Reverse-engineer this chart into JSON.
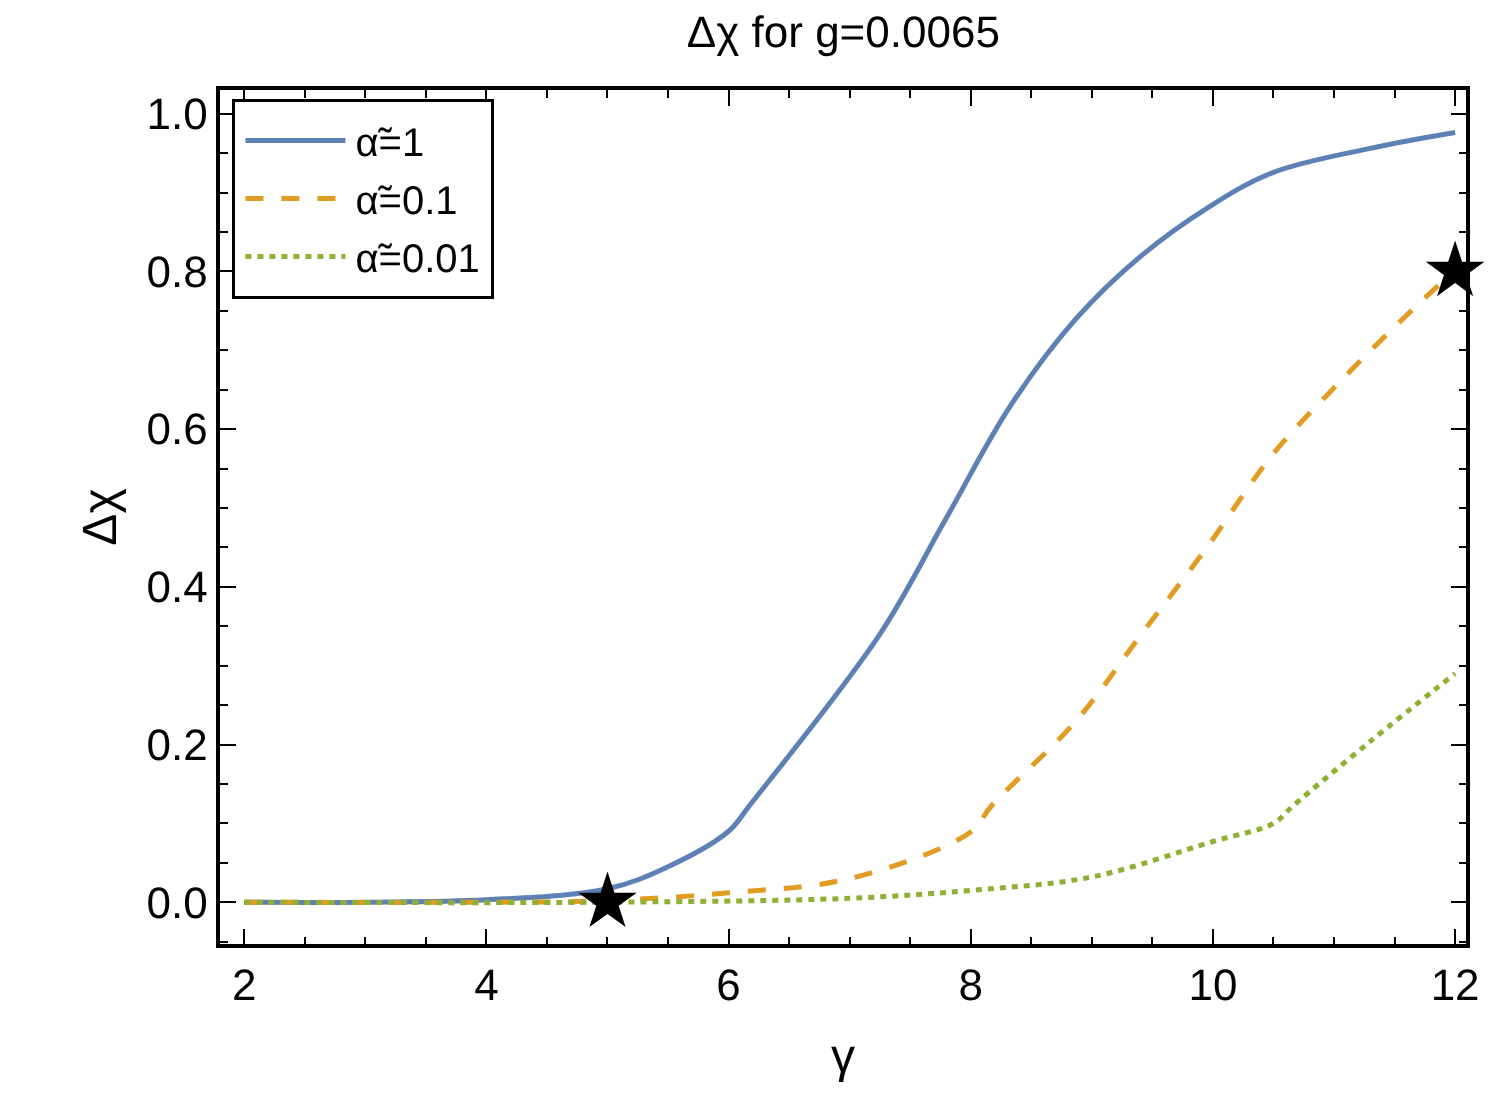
{
  "chart_data": {
    "type": "line",
    "title": "Δχ for g=0.0065",
    "xlabel": "γ",
    "ylabel": "Δχ",
    "xlim": [
      1.8,
      12.09
    ],
    "xticks": [
      2,
      4,
      6,
      8,
      10,
      12
    ],
    "ylim": [
      -0.053,
      1.03
    ],
    "yticks": [
      {
        "value": 0,
        "label": "0.0"
      },
      0.2,
      0.4,
      0.6,
      0.8,
      {
        "value": 1,
        "label": "1.0"
      }
    ],
    "legend": "top left",
    "series": [
      {
        "name": "α̃=1",
        "color": "#5e81b5",
        "line_style": "solid",
        "x": [
          2,
          3,
          4,
          5,
          5.5,
          6,
          6.17,
          7.25,
          7.79,
          8.33,
          8.87,
          9.41,
          9.95,
          10.49,
          11.3,
          12
        ],
        "values": [
          0,
          0,
          0.003,
          0.017,
          0.045,
          0.09,
          0.122,
          0.34,
          0.485,
          0.63,
          0.74,
          0.82,
          0.88,
          0.925,
          0.956,
          0.976
        ]
      },
      {
        "name": "α̃=0.1",
        "color": "#e19c24",
        "line_style": "dashed",
        "x": [
          2,
          4,
          5,
          6,
          7,
          8,
          8.17,
          8.87,
          9.41,
          9.95,
          10.49,
          11.03,
          11.57,
          11.92,
          12
        ],
        "values": [
          0,
          0,
          0.002,
          0.012,
          0.03,
          0.089,
          0.122,
          0.23,
          0.34,
          0.45,
          0.567,
          0.657,
          0.74,
          0.79,
          0.8
        ]
      },
      {
        "name": "α̃=0.01",
        "color": "#8fb032",
        "line_style": "dotted",
        "x": [
          2,
          5,
          7,
          8,
          9,
          10,
          10.5,
          10.66,
          11.3,
          12
        ],
        "values": [
          0,
          0,
          0.005,
          0.015,
          0.032,
          0.077,
          0.1,
          0.122,
          0.204,
          0.29
        ]
      },
      {
        "type": "scatter",
        "marker": "star",
        "color": "#000000",
        "x": [
          5,
          12
        ],
        "values": [
          0,
          0.8
        ]
      }
    ]
  }
}
